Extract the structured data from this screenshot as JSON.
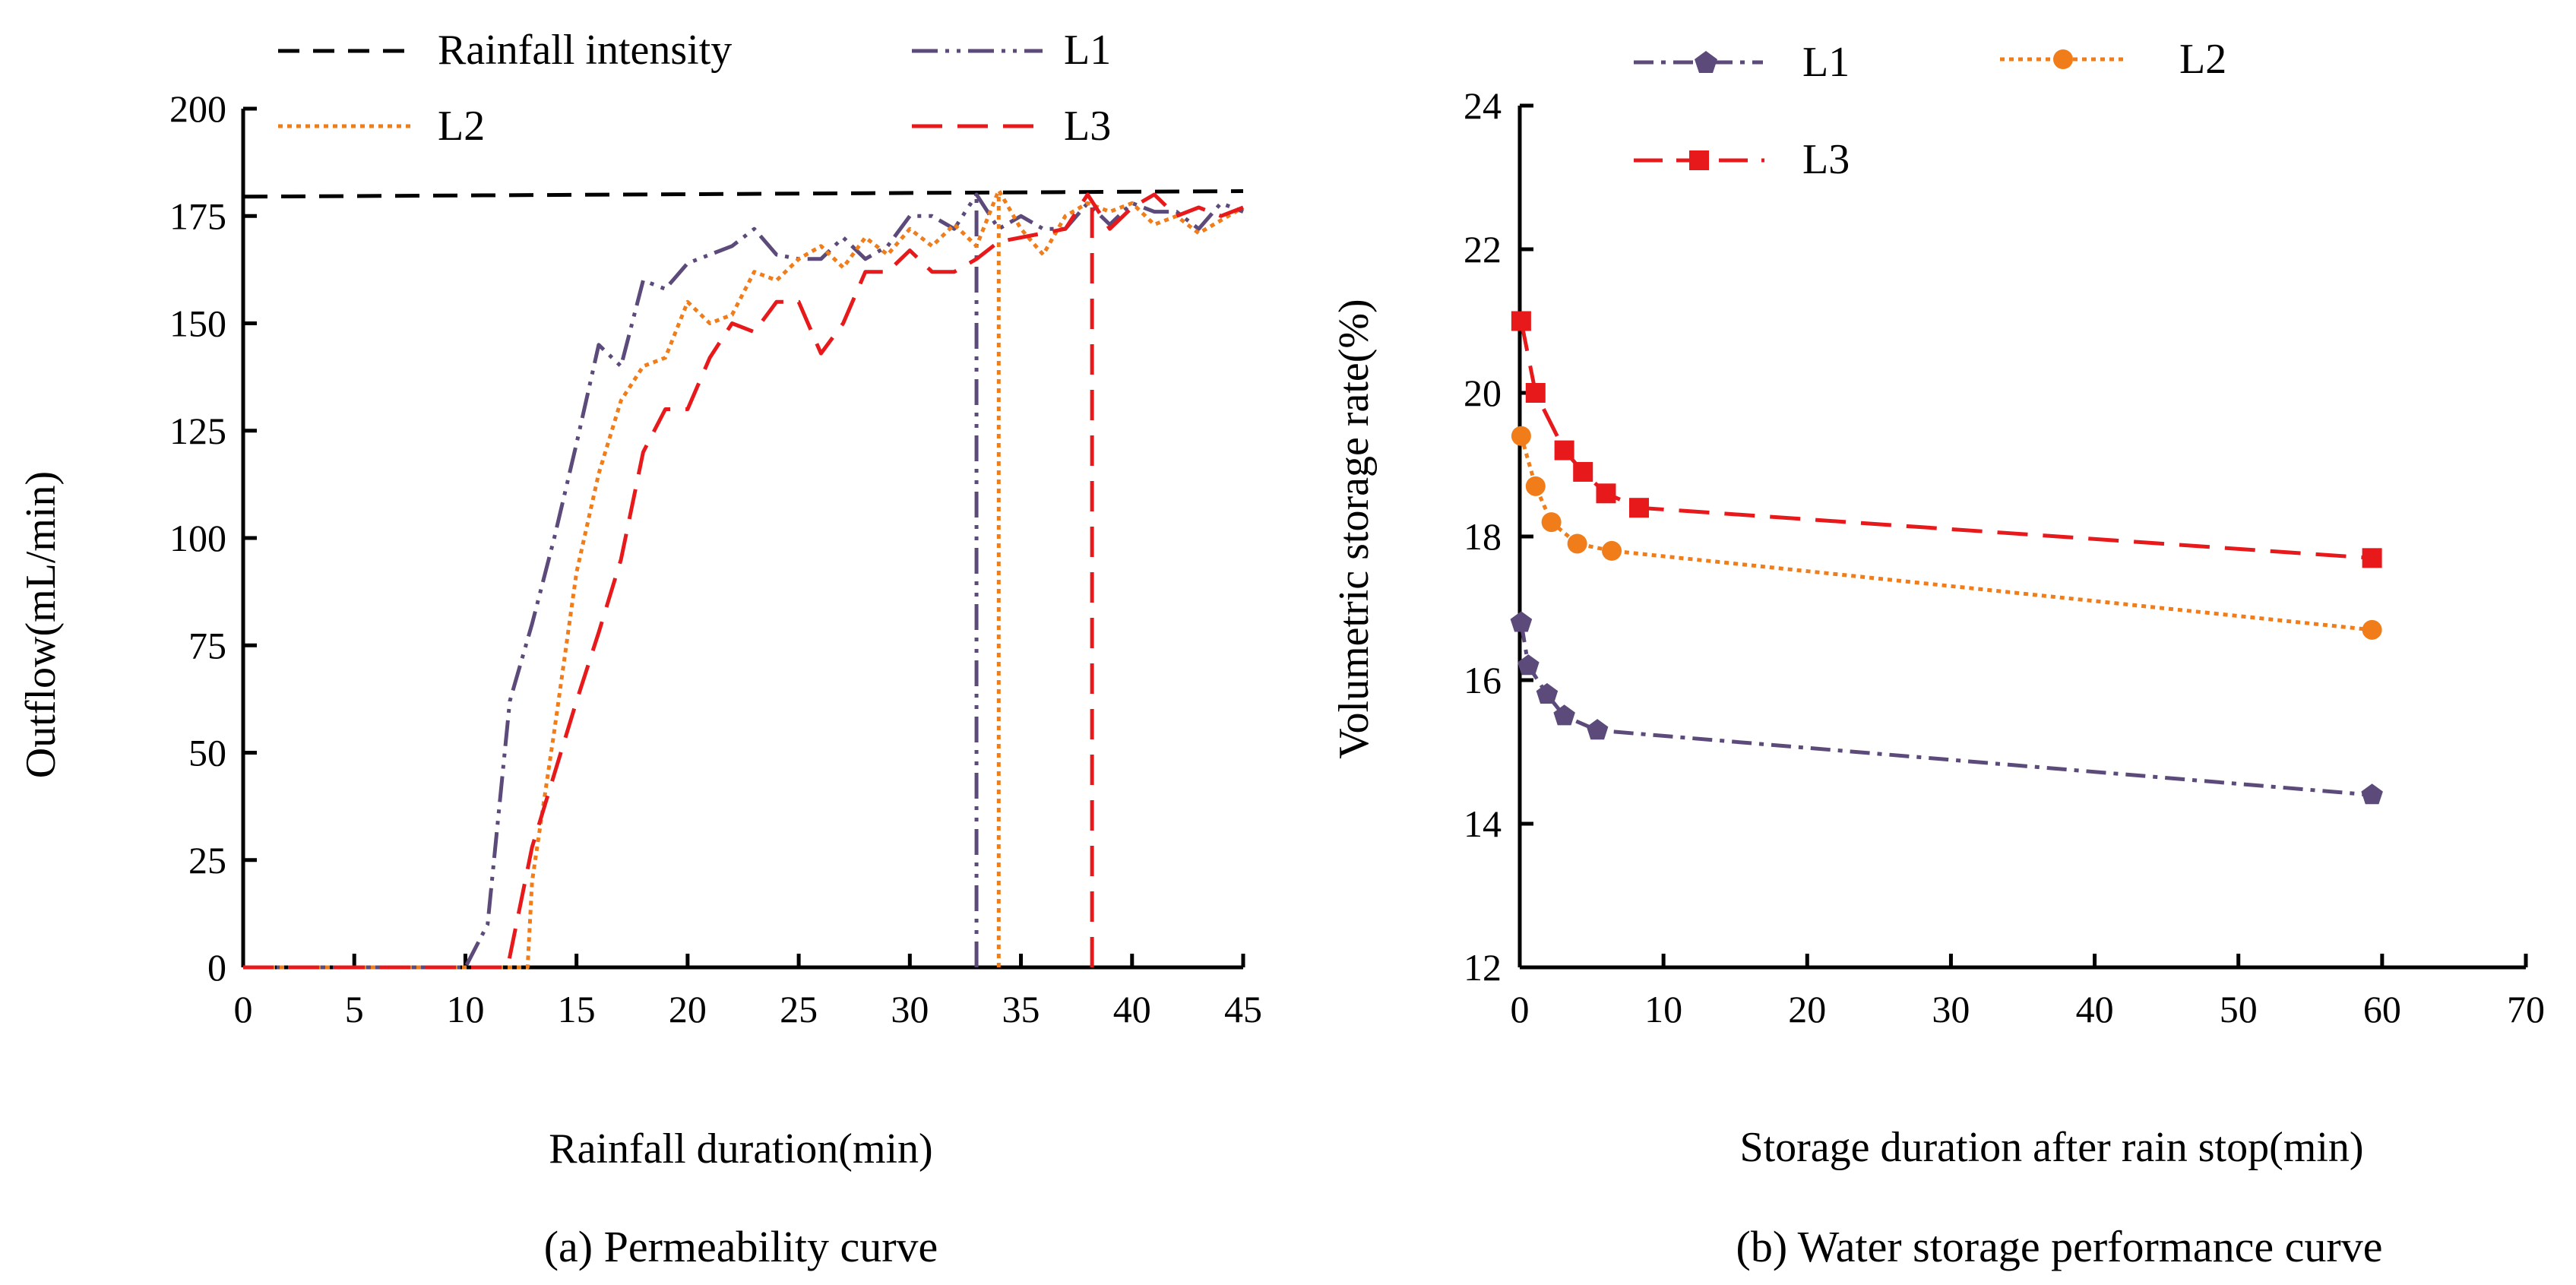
{
  "chart_data": [
    {
      "type": "line",
      "caption": "(a) Permeability curve",
      "xlabel": "Rainfall duration(min)",
      "ylabel": "Outflow(mL/min)",
      "xlim": [
        0,
        45
      ],
      "ylim": [
        0,
        200
      ],
      "xticks": [
        0,
        5,
        10,
        15,
        20,
        25,
        30,
        35,
        40,
        45
      ],
      "yticks": [
        0,
        25,
        50,
        75,
        100,
        125,
        150,
        175,
        200
      ],
      "xtick_labels": [
        "0",
        "5",
        "10",
        "15",
        "20",
        "25",
        "30",
        "35",
        "40",
        "45"
      ],
      "ytick_labels": [
        "0",
        "25",
        "50",
        "75",
        "100",
        "125",
        "150",
        "175",
        "200"
      ],
      "legend_position": "top",
      "series": [
        {
          "name": "Rainfall intensity",
          "color": "#000000",
          "dash": "dashed",
          "x": [
            0,
            45
          ],
          "y": [
            179.5,
            180.8
          ]
        },
        {
          "name": "L1",
          "color": "#5b4a7a",
          "dash": "dashdotdot",
          "x": [
            0,
            10,
            11,
            12,
            13,
            14,
            15,
            16,
            17,
            18,
            19,
            20,
            21,
            22,
            23,
            24,
            25,
            26,
            27,
            28,
            29,
            30,
            31,
            32,
            33,
            34,
            35,
            36,
            37,
            38,
            39,
            40,
            41,
            42,
            43,
            44,
            45
          ],
          "y": [
            0,
            0,
            10,
            62,
            80,
            100,
            122,
            145,
            140,
            160,
            158,
            164,
            166,
            168,
            172,
            166,
            165,
            165,
            170,
            165,
            168,
            175,
            175,
            172,
            180,
            172,
            175,
            172,
            172,
            178,
            173,
            178,
            176,
            176,
            172,
            178,
            176
          ],
          "end_x": 33
        },
        {
          "name": "L2",
          "color": "#f07d1a",
          "dash": "dotted",
          "x": [
            0,
            12.8,
            13,
            14,
            15,
            16,
            17,
            18,
            19,
            20,
            21,
            22,
            23,
            24,
            25,
            26,
            27,
            28,
            29,
            30,
            31,
            32,
            33,
            34,
            35,
            36,
            37,
            38,
            39,
            40,
            41,
            42,
            43,
            44,
            45
          ],
          "y": [
            0,
            0,
            20,
            55,
            92,
            115,
            132,
            140,
            142,
            155,
            150,
            152,
            162,
            160,
            165,
            168,
            163,
            170,
            166,
            172,
            168,
            173,
            168,
            181,
            172,
            166,
            175,
            178,
            176,
            178,
            173,
            175,
            171,
            174,
            177
          ],
          "end_x": 34
        },
        {
          "name": "L3",
          "color": "#e8191b",
          "dash": "longdashed",
          "x": [
            0,
            11.9,
            13,
            14,
            15,
            16,
            17,
            18,
            19,
            20,
            21,
            22,
            23,
            24,
            25,
            26,
            27,
            28,
            29,
            30,
            31,
            32,
            33,
            34,
            35,
            36,
            37,
            38,
            39,
            40,
            41,
            42,
            43,
            44,
            45
          ],
          "y": [
            0,
            0,
            28,
            45,
            62,
            78,
            95,
            120,
            130,
            130,
            142,
            150,
            148,
            155,
            155,
            143,
            150,
            162,
            162,
            167,
            162,
            162,
            165,
            169,
            170,
            171,
            172,
            180,
            172,
            177,
            180,
            175,
            177,
            175,
            177
          ],
          "end_x": 38.2
        }
      ]
    },
    {
      "type": "line",
      "caption": "(b) Water storage performance curve",
      "xlabel": "Storage duration after rain stop(min)",
      "ylabel": "Volumetric storage rate(%)",
      "xlim": [
        0,
        70
      ],
      "ylim": [
        12,
        24
      ],
      "xticks": [
        0,
        10,
        20,
        30,
        40,
        50,
        60,
        70
      ],
      "yticks": [
        12,
        14,
        16,
        18,
        20,
        22,
        24
      ],
      "xtick_labels": [
        "0",
        "10",
        "20",
        "30",
        "40",
        "50",
        "60",
        "70"
      ],
      "ytick_labels": [
        "12",
        "14",
        "16",
        "18",
        "20",
        "22",
        "24"
      ],
      "legend_position": "top",
      "series": [
        {
          "name": "L1",
          "color": "#5b4a7a",
          "dash": "dashdot",
          "marker": "pentagon",
          "x": [
            0.1,
            0.6,
            1.9,
            3.1,
            5.4,
            59.3
          ],
          "y": [
            16.8,
            16.2,
            15.8,
            15.5,
            15.3,
            14.4
          ]
        },
        {
          "name": "L2",
          "color": "#f07d1a",
          "dash": "dotted",
          "marker": "circle",
          "x": [
            0.1,
            1.1,
            2.2,
            4.0,
            6.4,
            59.3
          ],
          "y": [
            19.4,
            18.7,
            18.2,
            17.9,
            17.8,
            16.7
          ]
        },
        {
          "name": "L3",
          "color": "#e8191b",
          "dash": "longdashed",
          "marker": "square",
          "x": [
            0.1,
            1.1,
            3.1,
            4.4,
            6.0,
            8.3,
            59.3
          ],
          "y": [
            21.0,
            20.0,
            19.2,
            18.9,
            18.6,
            18.4,
            17.7
          ]
        }
      ]
    }
  ]
}
